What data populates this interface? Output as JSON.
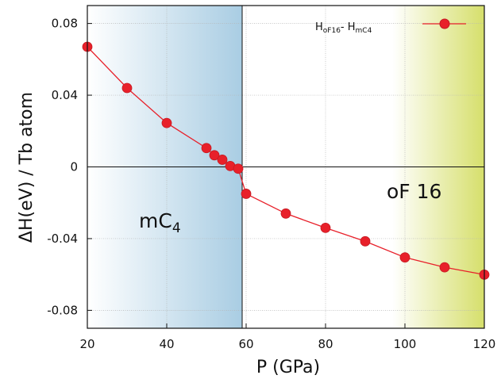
{
  "chart_data": {
    "type": "line",
    "xlabel": "P (GPa)",
    "ylabel": "ΔH(eV) / Tb atom",
    "xlim": [
      20,
      120
    ],
    "ylim": [
      -0.09,
      0.09
    ],
    "x_ticks": [
      "20",
      "40",
      "60",
      "80",
      "100",
      "120"
    ],
    "y_ticks": [
      "-0.08",
      "-0.04",
      "0",
      "0.04",
      "0.08"
    ],
    "grid": true,
    "legend_position": "top-right",
    "series": [
      {
        "name": "H_oF16 - H_mC4",
        "color": "#e8202a",
        "x": [
          20,
          30,
          40,
          50,
          52,
          54,
          56,
          58,
          60,
          70,
          80,
          90,
          100,
          110,
          120
        ],
        "y": [
          0.067,
          0.044,
          0.0245,
          0.0105,
          0.0065,
          0.004,
          0.0005,
          -0.001,
          -0.015,
          -0.026,
          -0.034,
          -0.0415,
          -0.0505,
          -0.056,
          -0.0601
        ]
      }
    ],
    "phase_boundary_x": 59,
    "regions": [
      {
        "label": "mC",
        "sub": "4",
        "from": 20,
        "to": 59,
        "color": "#a9cde3"
      },
      {
        "label": "oF 16",
        "from": 59,
        "to": 120,
        "color": "#d6df6b"
      }
    ]
  },
  "legend": {
    "main_1": "H",
    "sub_1": "oF16",
    "sep": "- H",
    "sub_2": "mC4"
  }
}
